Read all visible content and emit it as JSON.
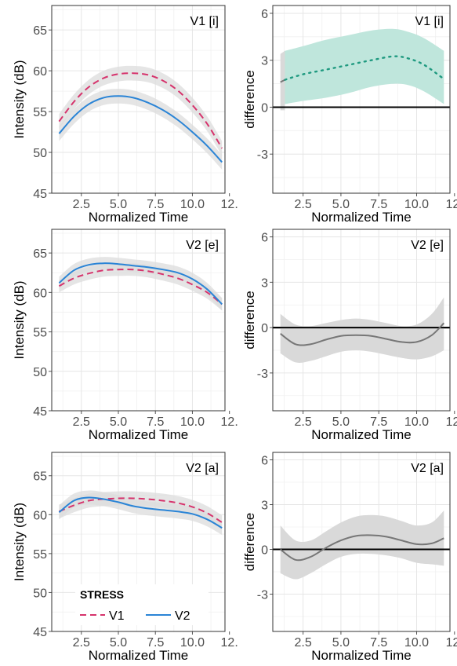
{
  "colors": {
    "V1": "#d6336c",
    "V2": "#2a84d6",
    "diff_positive_band": "#bfe6dc",
    "diff_positive_line": "#1f9a80",
    "diff_band": "#d9d9d9",
    "diff_line": "#777777",
    "ci_band": "#dcdcdc"
  },
  "legend": {
    "title": "STRESS",
    "items": [
      {
        "label": "V1",
        "style": "dashed"
      },
      {
        "label": "V2",
        "style": "solid"
      }
    ]
  },
  "chart_data": [
    {
      "type": "line",
      "panel": "intensity",
      "row": 0,
      "title": "V1 [i]",
      "xlabel": "Normalized Time",
      "ylabel": "Intensity (dB)",
      "xlim": [
        0.5,
        12.2
      ],
      "ylim": [
        45,
        68
      ],
      "x_ticks": [
        2.5,
        5.0,
        7.5,
        10.0,
        12.5
      ],
      "x_tick_labels": [
        "2.5",
        "5.0",
        "7.5",
        "10.0",
        "12."
      ],
      "y_ticks": [
        45,
        50,
        55,
        60,
        65
      ],
      "y_tick_labels": [
        "45",
        "50",
        "55",
        "60",
        "65"
      ],
      "grid": true,
      "series": [
        {
          "name": "V1",
          "style": "dashed",
          "x": [
            1,
            2,
            3,
            4,
            5,
            6,
            7,
            8,
            9,
            10,
            11,
            12
          ],
          "values": [
            53.8,
            56.2,
            58.0,
            59.1,
            59.6,
            59.7,
            59.5,
            58.8,
            57.6,
            55.8,
            53.5,
            50.5
          ],
          "band": 0.9
        },
        {
          "name": "V2",
          "style": "solid",
          "x": [
            1,
            2,
            3,
            4,
            5,
            6,
            7,
            8,
            9,
            10,
            11,
            12
          ],
          "values": [
            52.3,
            54.4,
            55.9,
            56.7,
            56.9,
            56.7,
            56.1,
            55.2,
            54.0,
            52.5,
            50.8,
            48.8
          ],
          "band": 0.9
        }
      ]
    },
    {
      "type": "line",
      "panel": "difference",
      "row": 0,
      "title": "V1 [i]",
      "xlabel": "Normalized Time",
      "ylabel": "difference",
      "xlim": [
        0.5,
        12.2
      ],
      "ylim": [
        -5.5,
        6.5
      ],
      "x_ticks": [
        2.5,
        5.0,
        7.5,
        10.0,
        12.5
      ],
      "x_tick_labels": [
        "2.5",
        "5.0",
        "7.5",
        "10.0",
        "12."
      ],
      "y_ticks": [
        -3,
        0,
        3,
        6
      ],
      "y_tick_labels": [
        "-3",
        "0",
        "3",
        "6"
      ],
      "grid": true,
      "segments": [
        {
          "significant": false,
          "x": [
            1.0,
            1.3
          ],
          "values": [
            1.6,
            1.75
          ],
          "lower": [
            -0.2,
            -0.2
          ],
          "upper": [
            3.4,
            3.6
          ]
        },
        {
          "significant": true,
          "x": [
            1.3,
            2.5,
            4.0,
            5.5,
            7.0,
            8.5,
            9.5,
            10.5,
            11.8
          ],
          "values": [
            1.75,
            2.1,
            2.4,
            2.7,
            3.0,
            3.25,
            3.1,
            2.7,
            1.8
          ],
          "lower": [
            0.2,
            0.4,
            0.6,
            0.9,
            1.3,
            1.5,
            1.4,
            1.0,
            0.2
          ],
          "upper": [
            3.6,
            3.9,
            4.3,
            4.6,
            4.9,
            5.0,
            4.8,
            4.4,
            3.6
          ]
        }
      ]
    },
    {
      "type": "line",
      "panel": "intensity",
      "row": 1,
      "title": "V2 [e]",
      "xlabel": "Normalized Time",
      "ylabel": "Intensity (dB)",
      "xlim": [
        0.5,
        12.2
      ],
      "ylim": [
        45,
        68
      ],
      "x_ticks": [
        2.5,
        5.0,
        7.5,
        10.0,
        12.5
      ],
      "x_tick_labels": [
        "2.5",
        "5.0",
        "7.5",
        "10.0",
        "12."
      ],
      "y_ticks": [
        45,
        50,
        55,
        60,
        65
      ],
      "y_tick_labels": [
        "45",
        "50",
        "55",
        "60",
        "65"
      ],
      "grid": true,
      "series": [
        {
          "name": "V1",
          "style": "dashed",
          "x": [
            1,
            2,
            3,
            4,
            5,
            6,
            7,
            8,
            9,
            10,
            11,
            12
          ],
          "values": [
            60.8,
            61.8,
            62.4,
            62.8,
            62.9,
            62.9,
            62.7,
            62.3,
            61.8,
            61.0,
            60.0,
            58.5
          ],
          "band": 0.8
        },
        {
          "name": "V2",
          "style": "solid",
          "x": [
            1,
            2,
            3,
            4,
            5,
            6,
            7,
            8,
            9,
            10,
            11,
            12
          ],
          "values": [
            61.2,
            62.8,
            63.5,
            63.7,
            63.6,
            63.4,
            63.2,
            62.9,
            62.5,
            61.7,
            60.4,
            58.5
          ],
          "band": 0.8
        }
      ]
    },
    {
      "type": "line",
      "panel": "difference",
      "row": 1,
      "title": "V2 [e]",
      "xlabel": "Normalized Time",
      "ylabel": "difference",
      "xlim": [
        0.5,
        12.2
      ],
      "ylim": [
        -5.5,
        6.5
      ],
      "x_ticks": [
        2.5,
        5.0,
        7.5,
        10.0,
        12.5
      ],
      "x_tick_labels": [
        "2.5",
        "5.0",
        "7.5",
        "10.0",
        "12."
      ],
      "y_ticks": [
        -3,
        0,
        3,
        6
      ],
      "y_tick_labels": [
        "-3",
        "0",
        "3",
        "6"
      ],
      "grid": true,
      "segments": [
        {
          "significant": false,
          "x": [
            1.0,
            2.0,
            3.0,
            4.0,
            5.0,
            6.0,
            7.0,
            8.0,
            9.0,
            10.0,
            11.0,
            11.8
          ],
          "values": [
            -0.4,
            -1.1,
            -1.1,
            -0.8,
            -0.55,
            -0.5,
            -0.55,
            -0.75,
            -0.95,
            -0.95,
            -0.5,
            0.3
          ],
          "lower": [
            -1.7,
            -2.3,
            -2.2,
            -1.9,
            -1.6,
            -1.5,
            -1.6,
            -1.8,
            -2.0,
            -2.1,
            -1.9,
            -1.5
          ],
          "upper": [
            0.9,
            0.2,
            0.1,
            0.3,
            0.5,
            0.6,
            0.5,
            0.3,
            0.1,
            0.2,
            0.9,
            2.0
          ]
        }
      ]
    },
    {
      "type": "line",
      "panel": "intensity",
      "row": 2,
      "title": "V2 [a]",
      "xlabel": "Normalized Time",
      "ylabel": "Intensity (dB)",
      "xlim": [
        0.5,
        12.2
      ],
      "ylim": [
        45,
        68
      ],
      "x_ticks": [
        2.5,
        5.0,
        7.5,
        10.0,
        12.5
      ],
      "x_tick_labels": [
        "2.5",
        "5.0",
        "7.5",
        "10.0",
        "12."
      ],
      "y_ticks": [
        45,
        50,
        55,
        60,
        65
      ],
      "y_tick_labels": [
        "45",
        "50",
        "55",
        "60",
        "65"
      ],
      "grid": true,
      "series": [
        {
          "name": "V1",
          "style": "dashed",
          "x": [
            1,
            2,
            3,
            4,
            5,
            6,
            7,
            8,
            9,
            10,
            11,
            12
          ],
          "values": [
            60.4,
            61.2,
            61.8,
            62.0,
            62.1,
            62.1,
            62.0,
            61.8,
            61.5,
            61.0,
            60.2,
            59.0
          ],
          "band": 0.9
        },
        {
          "name": "V2",
          "style": "solid",
          "x": [
            1,
            2,
            3,
            4,
            5,
            6,
            7,
            8,
            9,
            10,
            11,
            12
          ],
          "values": [
            60.3,
            61.8,
            62.2,
            62.0,
            61.6,
            61.1,
            60.8,
            60.6,
            60.4,
            60.1,
            59.4,
            58.3
          ],
          "band": 0.9
        }
      ]
    },
    {
      "type": "line",
      "panel": "difference",
      "row": 2,
      "title": "V2 [a]",
      "xlabel": "Normalized Time",
      "ylabel": "difference",
      "xlim": [
        0.5,
        12.2
      ],
      "ylim": [
        -5.5,
        6.5
      ],
      "x_ticks": [
        2.5,
        5.0,
        7.5,
        10.0,
        12.5
      ],
      "x_tick_labels": [
        "2.5",
        "5.0",
        "7.5",
        "10.0",
        "12."
      ],
      "y_ticks": [
        -3,
        0,
        3,
        6
      ],
      "y_tick_labels": [
        "-3",
        "0",
        "3",
        "6"
      ],
      "grid": true,
      "segments": [
        {
          "significant": false,
          "x": [
            1.0,
            2.0,
            3.0,
            4.0,
            5.0,
            6.0,
            7.0,
            8.0,
            9.0,
            10.0,
            11.0,
            11.8
          ],
          "values": [
            0.0,
            -0.7,
            -0.5,
            0.1,
            0.6,
            0.9,
            0.95,
            0.85,
            0.6,
            0.35,
            0.4,
            0.75
          ],
          "lower": [
            -1.6,
            -2.0,
            -1.6,
            -1.0,
            -0.5,
            -0.3,
            -0.3,
            -0.4,
            -0.6,
            -0.9,
            -1.0,
            -1.1
          ],
          "upper": [
            1.6,
            0.6,
            0.6,
            1.2,
            1.8,
            2.2,
            2.3,
            2.2,
            1.9,
            1.6,
            1.8,
            2.6
          ]
        }
      ]
    }
  ]
}
